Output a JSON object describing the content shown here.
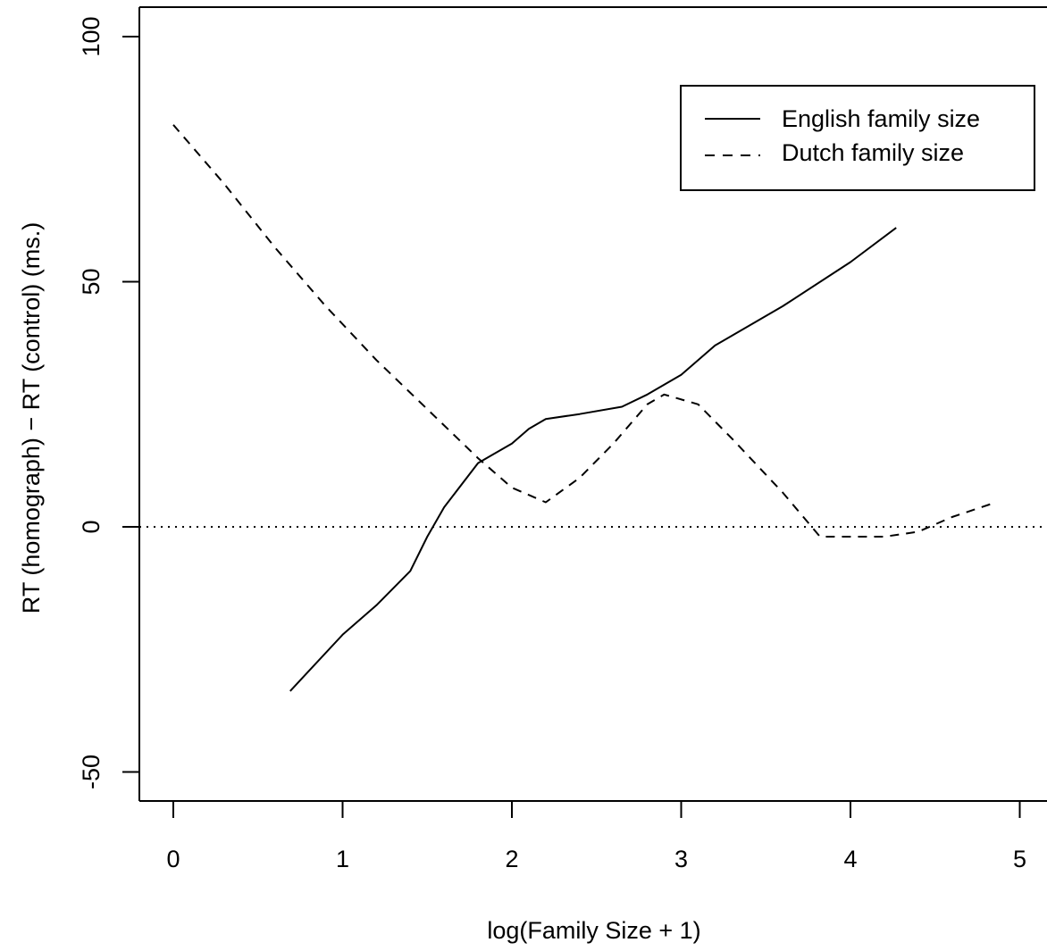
{
  "chart_data": {
    "type": "line",
    "title": "",
    "xlabel": "log(Family Size + 1)",
    "ylabel": "RT (homograph) − RT (control) (ms.)",
    "xlim": [
      -0.2,
      5.2
    ],
    "ylim": [
      -56,
      106
    ],
    "x_ticks": [
      0,
      1,
      2,
      3,
      4,
      5
    ],
    "x_tick_labels": [
      "0",
      "1",
      "2",
      "3",
      "4",
      "5"
    ],
    "y_ticks": [
      -50,
      0,
      50,
      100
    ],
    "y_tick_labels": [
      "-50",
      "0",
      "50",
      "100"
    ],
    "grid": false,
    "legend_position": "top-right",
    "reference_line": {
      "y": 0,
      "style": "dotted"
    },
    "series": [
      {
        "name": "English family size",
        "style": "solid",
        "color": "#000000",
        "x": [
          0.69,
          1.0,
          1.2,
          1.4,
          1.5,
          1.6,
          1.8,
          2.0,
          2.1,
          2.2,
          2.4,
          2.65,
          2.8,
          3.0,
          3.2,
          3.6,
          4.0,
          4.27
        ],
        "y": [
          -33.5,
          -22,
          -16,
          -9,
          -2,
          4,
          13,
          17,
          20,
          22,
          23,
          24.5,
          27,
          31,
          37,
          45,
          54,
          61
        ]
      },
      {
        "name": "Dutch family size",
        "style": "dashed",
        "color": "#000000",
        "x": [
          0.0,
          0.3,
          0.6,
          0.9,
          1.2,
          1.5,
          1.8,
          2.0,
          2.2,
          2.4,
          2.6,
          2.8,
          2.9,
          3.1,
          3.3,
          3.6,
          3.82,
          4.0,
          4.2,
          4.4,
          4.6,
          4.86
        ],
        "y": [
          82,
          70,
          57,
          45,
          34,
          24,
          14,
          8,
          5,
          10,
          17,
          25,
          27,
          25,
          18,
          7,
          -2,
          -2,
          -2,
          -1,
          2,
          5
        ]
      }
    ]
  }
}
